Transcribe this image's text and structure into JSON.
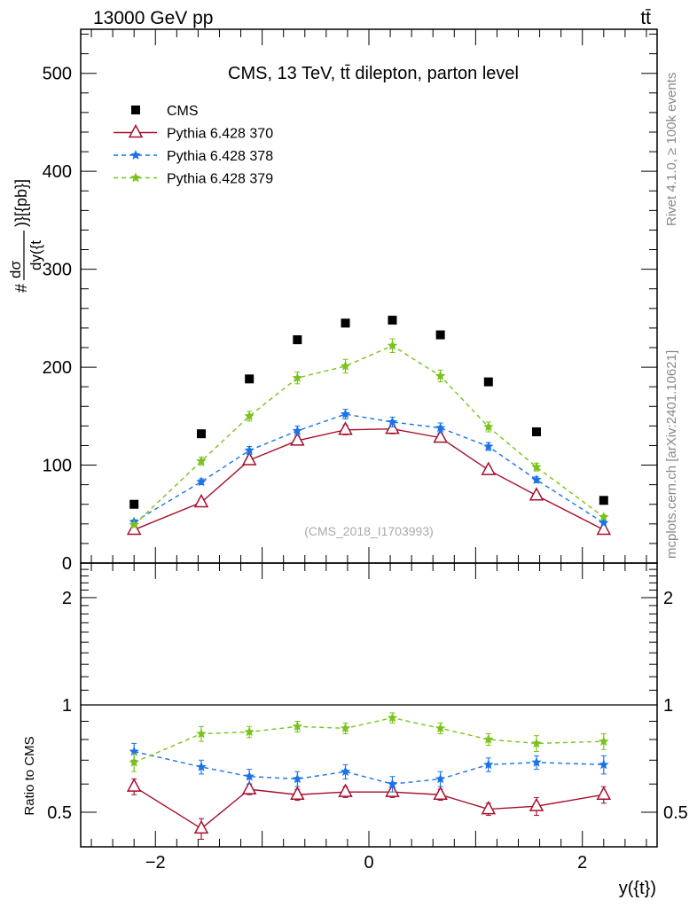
{
  "header": {
    "energy_label": "13000 GeV pp",
    "process_label": "tt̄"
  },
  "side": {
    "rivet_label": "Rivet 4.1.0, ≥ 100k events",
    "site_label": "mcplots.cern.ch [arXiv:2401.10621]"
  },
  "chart_data": [
    {
      "type": "scatter",
      "title": "CMS, 13 TeV, tt̄ dilepton, parton level",
      "annotation": "(CMS_2018_I1703993)",
      "xlabel": "y({t})",
      "ylabel": "#dσ/dy({t})}[{pb}]",
      "xlim": [
        -2.7,
        2.7
      ],
      "ylim": [
        0,
        545
      ],
      "xticks": [
        -2,
        0,
        2
      ],
      "xtick_labels": [
        "−2",
        "0",
        "2"
      ],
      "yticks": [
        0,
        100,
        200,
        300,
        400,
        500
      ],
      "ytick_labels": [
        "0",
        "100",
        "200",
        "300",
        "400",
        "500"
      ],
      "legend_position": "top-left",
      "x": [
        -2.2,
        -1.57,
        -1.12,
        -0.67,
        -0.22,
        0.22,
        0.67,
        1.12,
        1.57,
        2.2
      ],
      "series": [
        {
          "name": "CMS",
          "color": "#000000",
          "marker": "square",
          "values": [
            60,
            132,
            188,
            228,
            245,
            248,
            233,
            185,
            134,
            64
          ],
          "errors": [
            0,
            0,
            0,
            0,
            0,
            0,
            0,
            0,
            0,
            0
          ]
        },
        {
          "name": "Pythia 6.428 370",
          "color": "#a50f2d",
          "marker": "triangle-open",
          "dash": "",
          "values": [
            34,
            62,
            105,
            125,
            136,
            137,
            128,
            95,
            69,
            34
          ],
          "errors": [
            2,
            3,
            4,
            4,
            5,
            5,
            4,
            4,
            3,
            2
          ]
        },
        {
          "name": "Pythia 6.428 378",
          "color": "#1a73e8",
          "marker": "star",
          "dash": "5,4",
          "values": [
            42,
            83,
            115,
            135,
            152,
            144,
            138,
            119,
            85,
            41
          ],
          "errors": [
            2,
            3,
            4,
            5,
            5,
            5,
            5,
            4,
            3,
            2
          ]
        },
        {
          "name": "Pythia 6.428 379",
          "color": "#7ac31a",
          "marker": "star",
          "dash": "5,4",
          "values": [
            39,
            104,
            150,
            189,
            201,
            222,
            191,
            139,
            98,
            47
          ],
          "errors": [
            2,
            4,
            5,
            6,
            7,
            7,
            6,
            5,
            4,
            2
          ]
        }
      ]
    },
    {
      "type": "scatter",
      "ylabel": "Ratio to CMS",
      "yscale": "log",
      "ylim": [
        0.4,
        2.5
      ],
      "yticks": [
        0.5,
        1,
        2
      ],
      "ytick_labels": [
        "0.5",
        "1",
        "2"
      ],
      "x": [
        -2.2,
        -1.57,
        -1.12,
        -0.67,
        -0.22,
        0.22,
        0.67,
        1.12,
        1.57,
        2.2
      ],
      "series": [
        {
          "name": "Pythia 6.428 370",
          "color": "#a50f2d",
          "marker": "triangle-open",
          "dash": "",
          "values": [
            0.59,
            0.45,
            0.58,
            0.56,
            0.57,
            0.57,
            0.56,
            0.51,
            0.52,
            0.56
          ],
          "errors": [
            0.03,
            0.03,
            0.02,
            0.02,
            0.02,
            0.02,
            0.02,
            0.02,
            0.03,
            0.03
          ]
        },
        {
          "name": "Pythia 6.428 378",
          "color": "#1a73e8",
          "marker": "star",
          "dash": "5,4",
          "values": [
            0.74,
            0.67,
            0.63,
            0.62,
            0.65,
            0.6,
            0.62,
            0.68,
            0.69,
            0.68
          ],
          "errors": [
            0.04,
            0.03,
            0.03,
            0.03,
            0.03,
            0.03,
            0.03,
            0.03,
            0.03,
            0.04
          ]
        },
        {
          "name": "Pythia 6.428 379",
          "color": "#7ac31a",
          "marker": "star",
          "dash": "5,4",
          "values": [
            0.69,
            0.83,
            0.84,
            0.87,
            0.86,
            0.92,
            0.86,
            0.8,
            0.78,
            0.79
          ],
          "errors": [
            0.04,
            0.04,
            0.03,
            0.03,
            0.03,
            0.03,
            0.03,
            0.03,
            0.04,
            0.04
          ]
        }
      ]
    }
  ]
}
